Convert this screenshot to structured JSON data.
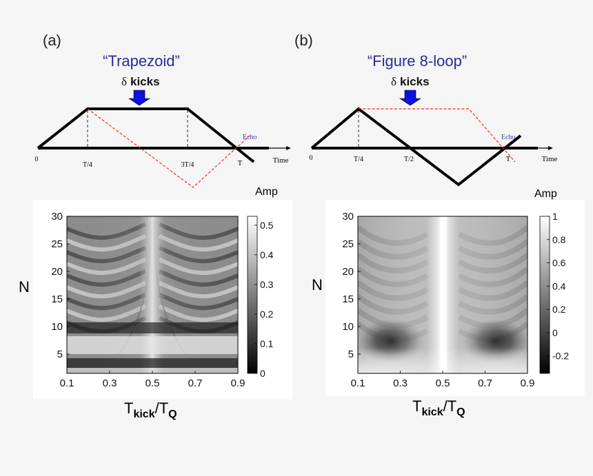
{
  "panel_a": {
    "label": "(a)",
    "title": "“Trapezoid”",
    "kicks": {
      "delta": "δ",
      "word": "kicks"
    },
    "ticks": [
      "0",
      "T/4",
      "3T/4",
      "T"
    ],
    "time_label": "Time",
    "echo_label": "Echo",
    "colorbar_title": "Amp",
    "colorbar_ticks": [
      "0.5",
      "0.4",
      "0.3",
      "0.2",
      "0.1",
      "0"
    ],
    "y_axis": {
      "label": "N",
      "ticks": [
        "30",
        "25",
        "20",
        "15",
        "10",
        "5"
      ]
    },
    "x_axis": {
      "label_main": "T",
      "label_sub1": "kick",
      "label_sep": "/T",
      "label_sub2": "Q",
      "ticks": [
        "0.1",
        "0.3",
        "0.5",
        "0.7",
        "0.9"
      ]
    }
  },
  "panel_b": {
    "label": "(b)",
    "title": "“Figure 8-loop”",
    "kicks": {
      "delta": "δ",
      "word": "kicks"
    },
    "ticks": [
      "0",
      "T/4",
      "T/2",
      "T"
    ],
    "time_label": "Time",
    "echo_label": "Echo",
    "colorbar_title": "Amp",
    "colorbar_ticks": [
      "1",
      "0.8",
      "0.6",
      "0.4",
      "0.2",
      "0",
      "-0.2"
    ],
    "y_axis": {
      "label": "N",
      "ticks": [
        "30",
        "25",
        "20",
        "15",
        "10",
        "5"
      ]
    },
    "x_axis": {
      "label_main": "T",
      "label_sub1": "kick",
      "label_sep": "/T",
      "label_sub2": "Q",
      "ticks": [
        "0.1",
        "0.3",
        "0.5",
        "0.7",
        "0.9"
      ]
    }
  },
  "colors": {
    "title": "#2a2a9a",
    "echo_path": "#ff2020",
    "kick_arrow": "#1010e0",
    "echo_text": "#3a3aa0"
  }
}
